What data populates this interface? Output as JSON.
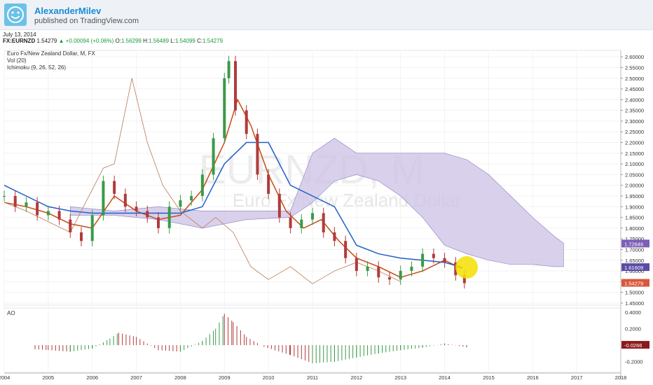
{
  "header": {
    "author": "AlexanderMilev",
    "published": "published on TradingView.com",
    "avatar_icon": "smiley-face-icon"
  },
  "quote_bar": {
    "date": "July 13, 2014",
    "symbol": "FX:EURNZD",
    "last": "1.54279",
    "change": "+0.00094 (+0.06%)",
    "change_icon": "up-triangle-icon",
    "open_label": "O:",
    "open": "1.56299",
    "high_label": "H:",
    "high": "1.56489",
    "low_label": "L:",
    "low": "1.54099",
    "close_label": "C:",
    "close": "1.54279"
  },
  "legend": {
    "line1": "Euro Fx/New Zealand Dollar, M, FX",
    "line2": "Vol (20)",
    "line3": "Ichimoku (9, 26, 52, 26)"
  },
  "watermark": {
    "symbol": "EURNZD, M",
    "name": "Euro Fx/New Zealand Dollar"
  },
  "colors": {
    "up": "#3a9a47",
    "down": "#b23a3a",
    "conversion": "#c94a10",
    "base": "#1f5fc9",
    "lagging": "#b87a55",
    "cloud": "#cfc6e6",
    "cloud_edge": "#8b7bc4"
  },
  "chart_data": [
    {
      "type": "candlestick",
      "title": "Euro Fx/New Zealand Dollar, M, FX",
      "x_ticks": [
        "2004",
        "2005",
        "2006",
        "2007",
        "2008",
        "2009",
        "2010",
        "2011",
        "2012",
        "2013",
        "2014",
        "2015",
        "2016",
        "2017",
        "2018"
      ],
      "xlim": [
        2004.0,
        2018.0
      ],
      "y_ticks": [
        "1.45000",
        "1.50000",
        "1.55000",
        "1.60000",
        "1.65000",
        "1.70000",
        "1.75000",
        "1.80000",
        "1.85000",
        "1.90000",
        "1.95000",
        "2.00000",
        "2.05000",
        "2.10000",
        "2.15000",
        "2.20000",
        "2.25000",
        "2.30000",
        "2.35000",
        "2.40000",
        "2.45000",
        "2.50000",
        "2.55000",
        "2.60000"
      ],
      "ylim": [
        1.44,
        2.63
      ],
      "price_labels": [
        {
          "text": "1.72646",
          "value": 1.72646,
          "color": "#7b5fb8"
        },
        {
          "text": "1.61609",
          "value": 1.61609,
          "color": "#5a4ba6"
        },
        {
          "text": "1.54279",
          "value": 1.54279,
          "color": "#d9583b"
        }
      ],
      "series": [
        {
          "name": "EURNZD",
          "type": "candles",
          "x": [
            2004.0,
            2004.25,
            2004.5,
            2004.75,
            2005.0,
            2005.25,
            2005.5,
            2005.75,
            2006.0,
            2006.25,
            2006.5,
            2006.75,
            2007.0,
            2007.25,
            2007.5,
            2007.75,
            2008.0,
            2008.25,
            2008.5,
            2008.75,
            2009.0,
            2009.1,
            2009.25,
            2009.5,
            2009.75,
            2010.0,
            2010.25,
            2010.5,
            2010.75,
            2011.0,
            2011.25,
            2011.5,
            2011.75,
            2012.0,
            2012.25,
            2012.5,
            2012.75,
            2013.0,
            2013.25,
            2013.5,
            2013.75,
            2014.0,
            2014.25,
            2014.45
          ],
          "close": [
            1.95,
            1.9,
            1.92,
            1.86,
            1.88,
            1.84,
            1.78,
            1.74,
            1.86,
            2.02,
            1.96,
            1.9,
            1.88,
            1.85,
            1.8,
            1.9,
            1.93,
            1.95,
            2.05,
            2.22,
            2.5,
            2.58,
            2.35,
            2.24,
            2.05,
            1.96,
            1.85,
            1.8,
            1.84,
            1.87,
            1.78,
            1.74,
            1.66,
            1.6,
            1.62,
            1.57,
            1.56,
            1.6,
            1.62,
            1.68,
            1.66,
            1.64,
            1.58,
            1.54279
          ]
        },
        {
          "name": "Ichimoku Tenkan",
          "type": "line",
          "x": [
            2004.0,
            2004.5,
            2005.0,
            2005.5,
            2006.0,
            2006.5,
            2007.0,
            2007.5,
            2008.0,
            2008.5,
            2009.0,
            2009.3,
            2009.6,
            2010.0,
            2010.4,
            2010.8,
            2011.2,
            2011.6,
            2012.0,
            2012.5,
            2013.0,
            2013.5,
            2014.0,
            2014.4
          ],
          "values": [
            1.92,
            1.9,
            1.87,
            1.82,
            1.8,
            1.95,
            1.88,
            1.84,
            1.86,
            1.98,
            2.2,
            2.4,
            2.28,
            2.05,
            1.88,
            1.8,
            1.84,
            1.74,
            1.66,
            1.62,
            1.57,
            1.6,
            1.65,
            1.61
          ]
        },
        {
          "name": "Ichimoku Kijun",
          "type": "line",
          "x": [
            2004.0,
            2004.5,
            2005.0,
            2005.5,
            2006.0,
            2006.5,
            2007.0,
            2007.5,
            2008.0,
            2008.5,
            2009.0,
            2009.5,
            2010.0,
            2010.5,
            2011.0,
            2011.5,
            2012.0,
            2012.5,
            2013.0,
            2013.5,
            2014.0,
            2014.4
          ],
          "values": [
            2.0,
            1.95,
            1.9,
            1.88,
            1.87,
            1.87,
            1.87,
            1.87,
            1.87,
            1.9,
            2.1,
            2.2,
            2.2,
            2.0,
            1.95,
            1.9,
            1.72,
            1.68,
            1.66,
            1.65,
            1.64,
            1.61609
          ]
        },
        {
          "name": "Ichimoku Chikou",
          "type": "line",
          "x": [
            2004.0,
            2004.5,
            2005.0,
            2005.5,
            2006.0,
            2006.25,
            2006.5,
            2006.9,
            2007.25,
            2007.6,
            2008.0,
            2008.5,
            2008.8,
            2009.2,
            2009.6,
            2010.0,
            2010.5,
            2011.0,
            2011.5,
            2012.0,
            2012.5,
            2013.0
          ],
          "values": [
            1.92,
            1.88,
            1.83,
            1.78,
            1.98,
            2.08,
            2.1,
            2.5,
            2.2,
            2.0,
            1.88,
            1.8,
            1.85,
            1.78,
            1.62,
            1.56,
            1.62,
            1.54,
            1.6,
            1.64,
            1.6,
            1.55
          ]
        },
        {
          "name": "Kumo",
          "type": "area",
          "x": [
            2005.5,
            2006.5,
            2007.5,
            2008.5,
            2009.5,
            2010.5,
            2011.0,
            2011.5,
            2012.0,
            2012.5,
            2013.0,
            2013.5,
            2014.0,
            2014.5,
            2015.0,
            2015.5,
            2016.0,
            2016.5,
            2016.7
          ],
          "upper": [
            1.9,
            1.88,
            1.9,
            1.88,
            1.88,
            1.88,
            2.15,
            2.22,
            2.15,
            2.15,
            2.15,
            2.15,
            2.15,
            2.12,
            2.05,
            1.95,
            1.85,
            1.76,
            1.73
          ],
          "lower": [
            1.86,
            1.86,
            1.84,
            1.8,
            1.84,
            1.85,
            1.92,
            2.02,
            2.05,
            2.02,
            1.95,
            1.85,
            1.72,
            1.68,
            1.65,
            1.63,
            1.63,
            1.62,
            1.62
          ]
        }
      ]
    },
    {
      "type": "bar",
      "title": "AO",
      "y_ticks": [
        "-0.2000",
        "0.4000",
        "0.2000"
      ],
      "ylim": [
        -0.33,
        0.45
      ],
      "value_label": "-0.0266",
      "x": [
        2004.7,
        2005.0,
        2005.5,
        2006.0,
        2006.4,
        2006.6,
        2007.0,
        2007.5,
        2008.0,
        2008.5,
        2008.8,
        2009.0,
        2009.2,
        2009.5,
        2009.9,
        2010.5,
        2011.0,
        2011.5,
        2012.0,
        2012.5,
        2013.0,
        2013.5,
        2014.0,
        2014.5
      ],
      "values": [
        -0.05,
        -0.06,
        -0.08,
        -0.04,
        0.08,
        0.15,
        0.1,
        -0.06,
        -0.08,
        0.05,
        0.2,
        0.38,
        0.28,
        0.1,
        -0.02,
        -0.12,
        -0.22,
        -0.2,
        -0.15,
        -0.1,
        -0.06,
        -0.03,
        0.02,
        -0.0266
      ]
    }
  ]
}
